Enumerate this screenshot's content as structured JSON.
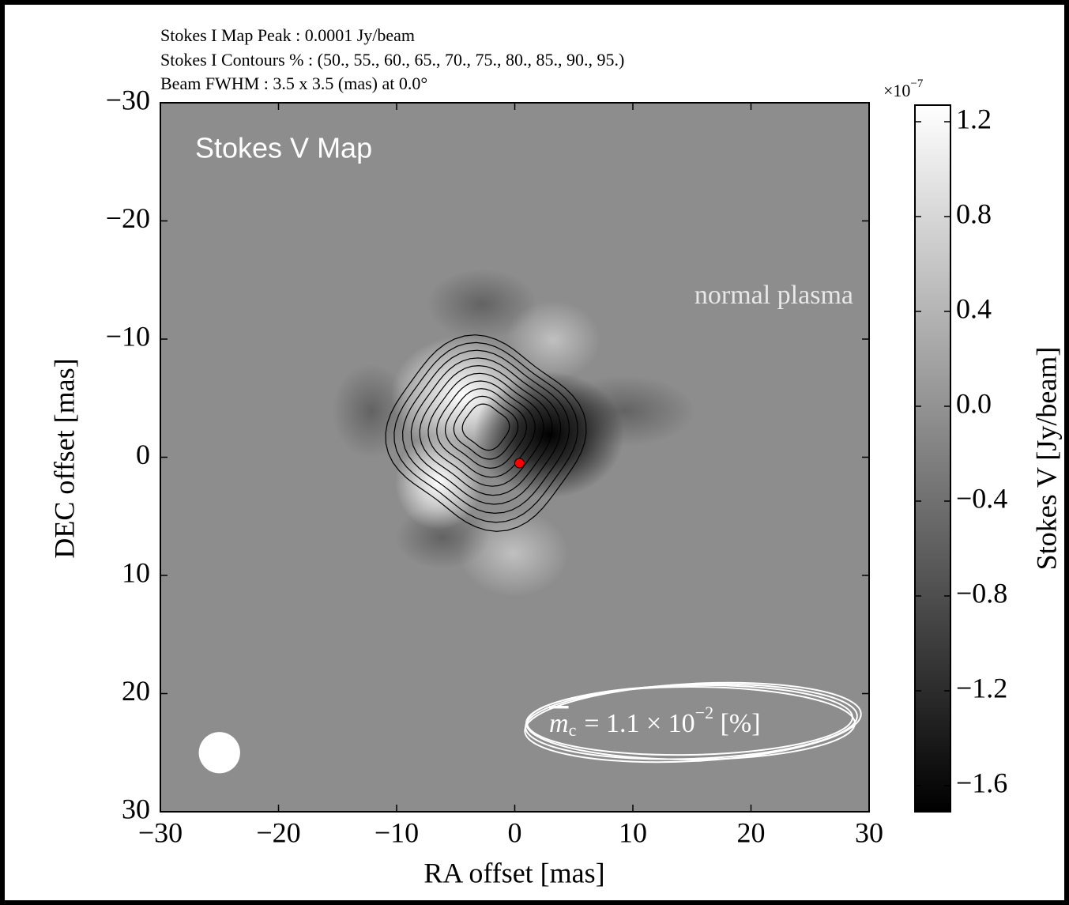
{
  "header": {
    "lines": [
      "Stokes I Map Peak :  0.0001 Jy/beam",
      "Stokes I Contours % :  (50., 55., 60., 65., 70., 75., 80., 85., 90., 95.)",
      "Beam FWHM :  3.5 x 3.5 (mas) at 0.0°"
    ]
  },
  "chart_data": {
    "type": "image",
    "title": "Stokes V Map",
    "annotation": "normal plasma",
    "statistic": {
      "symbol": "m",
      "subscript": "c",
      "text": "=  1.1 × 10",
      "exponent": "−2",
      "unit": " [%]"
    },
    "x_label": "RA offset [mas]",
    "y_label": "DEC offset [mas]",
    "xlim": [
      -30,
      30
    ],
    "xticks": [
      {
        "value": -30,
        "label": "−30"
      },
      {
        "value": -20,
        "label": "−20"
      },
      {
        "value": -10,
        "label": "−10"
      },
      0,
      10,
      20,
      30
    ],
    "ylim": [
      30,
      -30
    ],
    "yticks": [
      {
        "value": -30,
        "label": "−30"
      },
      {
        "value": -20,
        "label": "−20"
      },
      {
        "value": -10,
        "label": "−10"
      },
      0,
      10,
      20,
      30
    ],
    "colorbar": {
      "label": "Stokes V [Jy/beam]",
      "multiplier": {
        "base": "×10",
        "exponent": "−7"
      },
      "lim": [
        -1.71,
        1.27
      ],
      "colors": [
        "#000000",
        "#ffffff"
      ],
      "ticks": [
        1.2,
        0.8,
        0.4,
        {
          "value": 0,
          "label": "0.0"
        },
        {
          "value": -0.4,
          "label": "−0.4"
        },
        {
          "value": -0.8,
          "label": "−0.8"
        },
        {
          "value": -1.2,
          "label": "−1.2"
        },
        {
          "value": -1.6,
          "label": "−1.6"
        }
      ]
    },
    "markers": {
      "x": [
        0.4
      ],
      "y": [
        0.5
      ],
      "color": "#ff0000"
    },
    "beam": {
      "x": -25,
      "y": 25,
      "fwhm": 3.5,
      "color": "#ffffff"
    }
  }
}
